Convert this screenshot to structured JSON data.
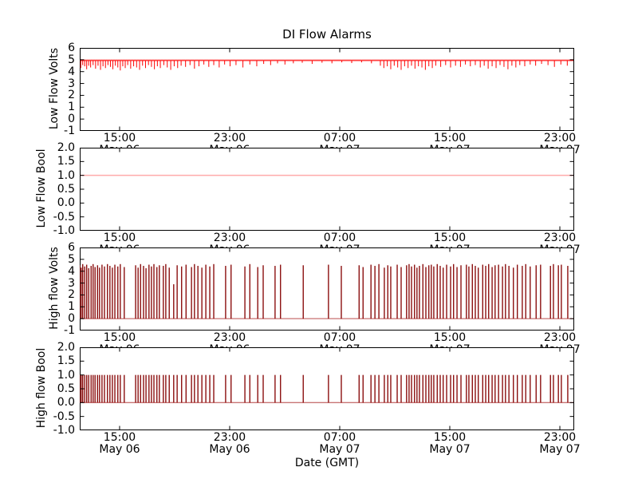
{
  "title": "DI Flow Alarms",
  "xlabel": "Date (GMT)",
  "colors": {
    "volts_line": "#ff0000",
    "threshold_line": "#ffaaaa",
    "bool_line": "#ffaaaa",
    "spike_line": "#8b0f0f",
    "baseline_line": "#c87070",
    "axis": "#000000",
    "background": "#ffffff"
  },
  "x_axis": {
    "ticks": [
      {
        "frac": 0.0806,
        "time": "15:00",
        "date": "May 06"
      },
      {
        "frac": 0.3032,
        "time": "23:00",
        "date": "May 06"
      },
      {
        "frac": 0.5258,
        "time": "07:00",
        "date": "May 07"
      },
      {
        "frac": 0.7484,
        "time": "15:00",
        "date": "May 07"
      },
      {
        "frac": 0.971,
        "time": "23:00",
        "date": "May 07"
      }
    ],
    "range_note": "May 06 ~12:00 GMT to May 08 ~00:00 GMT"
  },
  "subplots": [
    {
      "ylabel": "Low Flow Volts",
      "ytick_labels": [
        "6",
        "5",
        "4",
        "3",
        "2",
        "1",
        "0",
        "-1"
      ],
      "ytick_values": [
        6,
        5,
        4,
        3,
        2,
        1,
        0,
        -1
      ],
      "ylim": [
        -1,
        6
      ]
    },
    {
      "ylabel": "Low Flow Bool",
      "ytick_labels": [
        "2.0",
        "1.5",
        "1.0",
        "0.5",
        "0.0",
        "-0.5",
        "-1.0"
      ],
      "ytick_values": [
        2,
        1.5,
        1,
        0.5,
        0,
        -0.5,
        -1
      ],
      "ylim": [
        -1,
        2
      ]
    },
    {
      "ylabel": "High flow Volts",
      "ytick_labels": [
        "6",
        "5",
        "4",
        "3",
        "2",
        "1",
        "0",
        "-1"
      ],
      "ytick_values": [
        6,
        5,
        4,
        3,
        2,
        1,
        0,
        -1
      ],
      "ylim": [
        -1,
        6
      ]
    },
    {
      "ylabel": "High flow Bool",
      "ytick_labels": [
        "2.0",
        "1.5",
        "1.0",
        "0.5",
        "0.0",
        "-0.5",
        "-1.0"
      ],
      "ytick_values": [
        2,
        1.5,
        1,
        0.5,
        0,
        -0.5,
        -1
      ],
      "ylim": [
        -1,
        2
      ]
    }
  ],
  "chart_data": [
    {
      "type": "line",
      "ylabel": "Low Flow Volts",
      "ylim": [
        -1,
        6
      ],
      "threshold": 5.0,
      "baseline": 4.93,
      "note": "red volts signal hugging ~4.93 with downward noise dips; salmon threshold at 5.0; x = fraction of 36 h window May 06 12:00 - May 08 00:00 GMT",
      "dips": [
        [
          0.002,
          4.3
        ],
        [
          0.006,
          4.55
        ],
        [
          0.01,
          4.45
        ],
        [
          0.014,
          4.2
        ],
        [
          0.018,
          4.5
        ],
        [
          0.022,
          4.35
        ],
        [
          0.027,
          4.55
        ],
        [
          0.032,
          4.25
        ],
        [
          0.037,
          4.5
        ],
        [
          0.042,
          4.15
        ],
        [
          0.047,
          4.45
        ],
        [
          0.052,
          4.3
        ],
        [
          0.057,
          4.55
        ],
        [
          0.062,
          4.4
        ],
        [
          0.067,
          4.2
        ],
        [
          0.072,
          4.5
        ],
        [
          0.077,
          4.35
        ],
        [
          0.082,
          4.1
        ],
        [
          0.087,
          4.45
        ],
        [
          0.092,
          4.3
        ],
        [
          0.097,
          4.55
        ],
        [
          0.103,
          4.25
        ],
        [
          0.109,
          4.45
        ],
        [
          0.115,
          4.35
        ],
        [
          0.121,
          4.15
        ],
        [
          0.127,
          4.5
        ],
        [
          0.133,
          4.3
        ],
        [
          0.139,
          4.55
        ],
        [
          0.145,
          4.4
        ],
        [
          0.151,
          4.2
        ],
        [
          0.157,
          4.45
        ],
        [
          0.163,
          4.3
        ],
        [
          0.17,
          4.55
        ],
        [
          0.177,
          4.35
        ],
        [
          0.184,
          4.15
        ],
        [
          0.191,
          4.45
        ],
        [
          0.198,
          4.3
        ],
        [
          0.205,
          4.5
        ],
        [
          0.214,
          4.4
        ],
        [
          0.223,
          4.55
        ],
        [
          0.232,
          4.25
        ],
        [
          0.241,
          4.45
        ],
        [
          0.251,
          4.6
        ],
        [
          0.261,
          4.4
        ],
        [
          0.271,
          4.55
        ],
        [
          0.282,
          4.35
        ],
        [
          0.293,
          4.6
        ],
        [
          0.304,
          4.45
        ],
        [
          0.316,
          4.55
        ],
        [
          0.33,
          4.35
        ],
        [
          0.344,
          4.6
        ],
        [
          0.358,
          4.45
        ],
        [
          0.372,
          4.65
        ],
        [
          0.386,
          4.55
        ],
        [
          0.4,
          4.7
        ],
        [
          0.415,
          4.6
        ],
        [
          0.432,
          4.7
        ],
        [
          0.45,
          4.75
        ],
        [
          0.47,
          4.65
        ],
        [
          0.49,
          4.75
        ],
        [
          0.51,
          4.7
        ],
        [
          0.53,
          4.78
        ],
        [
          0.55,
          4.72
        ],
        [
          0.57,
          4.78
        ],
        [
          0.59,
          4.7
        ],
        [
          0.608,
          4.5
        ],
        [
          0.615,
          4.3
        ],
        [
          0.622,
          4.45
        ],
        [
          0.629,
          4.2
        ],
        [
          0.636,
          4.5
        ],
        [
          0.643,
          4.35
        ],
        [
          0.65,
          4.15
        ],
        [
          0.657,
          4.45
        ],
        [
          0.664,
          4.3
        ],
        [
          0.671,
          4.5
        ],
        [
          0.678,
          4.25
        ],
        [
          0.685,
          4.45
        ],
        [
          0.692,
          4.35
        ],
        [
          0.699,
          4.15
        ],
        [
          0.706,
          4.45
        ],
        [
          0.713,
          4.3
        ],
        [
          0.72,
          4.5
        ],
        [
          0.73,
          4.4
        ],
        [
          0.74,
          4.55
        ],
        [
          0.75,
          4.35
        ],
        [
          0.76,
          4.5
        ],
        [
          0.77,
          4.4
        ],
        [
          0.78,
          4.6
        ],
        [
          0.79,
          4.45
        ],
        [
          0.8,
          4.55
        ],
        [
          0.81,
          4.35
        ],
        [
          0.818,
          4.5
        ],
        [
          0.826,
          4.25
        ],
        [
          0.834,
          4.45
        ],
        [
          0.842,
          4.3
        ],
        [
          0.85,
          4.55
        ],
        [
          0.858,
          4.4
        ],
        [
          0.866,
          4.2
        ],
        [
          0.874,
          4.5
        ],
        [
          0.882,
          4.35
        ],
        [
          0.89,
          4.55
        ],
        [
          0.9,
          4.45
        ],
        [
          0.911,
          4.6
        ],
        [
          0.922,
          4.5
        ],
        [
          0.934,
          4.65
        ],
        [
          0.947,
          4.55
        ],
        [
          0.96,
          4.4
        ],
        [
          0.973,
          4.6
        ],
        [
          0.986,
          4.5
        ]
      ]
    },
    {
      "type": "line",
      "ylabel": "Low Flow Bool",
      "ylim": [
        -1,
        2
      ],
      "value": 1.0,
      "note": "constant boolean 1.0 across the whole window (salmon line)"
    },
    {
      "type": "line",
      "ylabel": "High flow Volts",
      "ylim": [
        -1,
        6
      ],
      "baseline": 0.0,
      "note": "dark red spike train from 0 V up to ~4.3-4.6 V; salmon baseline at 0; x = fraction of window",
      "spikes": [
        [
          0.0,
          4.5
        ],
        [
          0.003,
          4.3
        ],
        [
          0.006,
          4.6
        ],
        [
          0.01,
          4.4
        ],
        [
          0.014,
          4.55
        ],
        [
          0.018,
          4.25
        ],
        [
          0.023,
          4.45
        ],
        [
          0.027,
          4.6
        ],
        [
          0.031,
          4.35
        ],
        [
          0.036,
          4.5
        ],
        [
          0.04,
          4.3
        ],
        [
          0.045,
          4.55
        ],
        [
          0.05,
          4.4
        ],
        [
          0.056,
          4.6
        ],
        [
          0.061,
          4.45
        ],
        [
          0.066,
          4.3
        ],
        [
          0.071,
          4.55
        ],
        [
          0.077,
          4.4
        ],
        [
          0.082,
          4.6
        ],
        [
          0.09,
          4.35
        ],
        [
          0.113,
          4.5
        ],
        [
          0.118,
          4.3
        ],
        [
          0.123,
          4.6
        ],
        [
          0.129,
          4.45
        ],
        [
          0.134,
          4.25
        ],
        [
          0.14,
          4.55
        ],
        [
          0.145,
          4.4
        ],
        [
          0.15,
          4.6
        ],
        [
          0.156,
          4.35
        ],
        [
          0.161,
          4.5
        ],
        [
          0.169,
          4.45
        ],
        [
          0.174,
          4.6
        ],
        [
          0.181,
          4.3
        ],
        [
          0.19,
          2.9
        ],
        [
          0.197,
          4.5
        ],
        [
          0.206,
          4.4
        ],
        [
          0.215,
          4.55
        ],
        [
          0.226,
          4.35
        ],
        [
          0.232,
          4.6
        ],
        [
          0.239,
          4.45
        ],
        [
          0.247,
          4.3
        ],
        [
          0.255,
          4.55
        ],
        [
          0.263,
          4.4
        ],
        [
          0.271,
          4.6
        ],
        [
          0.295,
          4.45
        ],
        [
          0.306,
          4.55
        ],
        [
          0.334,
          4.4
        ],
        [
          0.344,
          4.6
        ],
        [
          0.36,
          4.35
        ],
        [
          0.371,
          4.5
        ],
        [
          0.395,
          4.45
        ],
        [
          0.406,
          4.55
        ],
        [
          0.452,
          4.5
        ],
        [
          0.503,
          4.55
        ],
        [
          0.529,
          4.45
        ],
        [
          0.565,
          4.5
        ],
        [
          0.573,
          4.35
        ],
        [
          0.589,
          4.55
        ],
        [
          0.597,
          4.45
        ],
        [
          0.605,
          4.6
        ],
        [
          0.616,
          4.3
        ],
        [
          0.623,
          4.5
        ],
        [
          0.629,
          4.4
        ],
        [
          0.642,
          4.55
        ],
        [
          0.65,
          4.35
        ],
        [
          0.661,
          4.5
        ],
        [
          0.666,
          4.6
        ],
        [
          0.671,
          4.4
        ],
        [
          0.677,
          4.55
        ],
        [
          0.682,
          4.3
        ],
        [
          0.687,
          4.45
        ],
        [
          0.694,
          4.6
        ],
        [
          0.7,
          4.35
        ],
        [
          0.706,
          4.5
        ],
        [
          0.711,
          4.55
        ],
        [
          0.716,
          4.4
        ],
        [
          0.723,
          4.6
        ],
        [
          0.729,
          4.45
        ],
        [
          0.735,
          4.3
        ],
        [
          0.742,
          4.55
        ],
        [
          0.75,
          4.4
        ],
        [
          0.756,
          4.6
        ],
        [
          0.763,
          4.35
        ],
        [
          0.771,
          4.5
        ],
        [
          0.782,
          4.55
        ],
        [
          0.787,
          4.4
        ],
        [
          0.794,
          4.6
        ],
        [
          0.8,
          4.45
        ],
        [
          0.806,
          4.3
        ],
        [
          0.815,
          4.55
        ],
        [
          0.821,
          4.45
        ],
        [
          0.827,
          4.6
        ],
        [
          0.834,
          4.35
        ],
        [
          0.84,
          4.5
        ],
        [
          0.847,
          4.55
        ],
        [
          0.855,
          4.4
        ],
        [
          0.861,
          4.6
        ],
        [
          0.868,
          4.45
        ],
        [
          0.877,
          4.3
        ],
        [
          0.885,
          4.55
        ],
        [
          0.895,
          4.45
        ],
        [
          0.902,
          4.6
        ],
        [
          0.911,
          4.4
        ],
        [
          0.923,
          4.5
        ],
        [
          0.932,
          4.55
        ],
        [
          0.952,
          4.45
        ],
        [
          0.958,
          4.6
        ],
        [
          0.968,
          4.5
        ],
        [
          0.974,
          4.55
        ],
        [
          0.987,
          4.45
        ]
      ]
    },
    {
      "type": "line",
      "ylabel": "High flow Bool",
      "ylim": [
        -1,
        2
      ],
      "baseline": 0.0,
      "spike_height": 1.0,
      "note": "boolean spikes 0 to 1 at the same times as the High flow Volts spikes; salmon baseline at 0"
    }
  ]
}
